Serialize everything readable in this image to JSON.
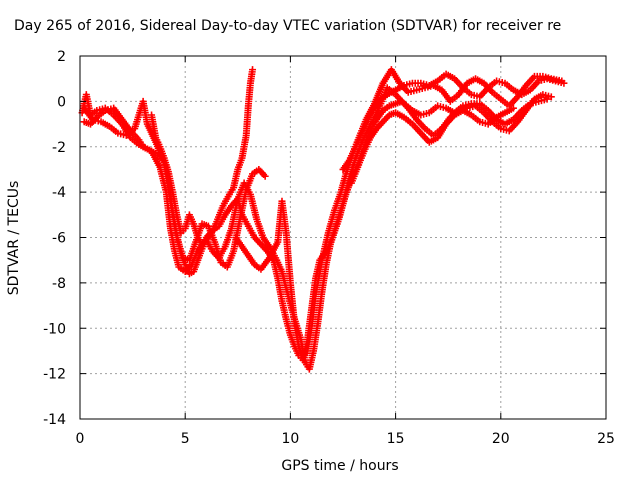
{
  "chart_data": {
    "type": "scatter",
    "title": "Day 265 of 2016, Sidereal Day-to-day VTEC variation (SDTVAR) for receiver re",
    "xlabel": "GPS time / hours",
    "ylabel": "SDTVAR / TECUs",
    "xlim": [
      0,
      25
    ],
    "ylim": [
      -14,
      2
    ],
    "xticks": [
      0,
      5,
      10,
      15,
      20,
      25
    ],
    "yticks": [
      -14,
      -12,
      -10,
      -8,
      -6,
      -4,
      -2,
      0,
      2
    ],
    "grid": true,
    "legend": "none",
    "marker": "plus",
    "color": "#ff0000",
    "series": [
      {
        "points": [
          [
            0.1,
            -0.5
          ],
          [
            0.3,
            0.3
          ],
          [
            0.5,
            -0.6
          ],
          [
            0.8,
            -0.4
          ],
          [
            1.2,
            -0.3
          ],
          [
            1.6,
            -0.6
          ],
          [
            2.0,
            -1.0
          ],
          [
            2.4,
            -1.6
          ],
          [
            2.8,
            -1.9
          ],
          [
            3.2,
            -2.1
          ],
          [
            3.6,
            -2.3
          ],
          [
            4.0,
            -2.6
          ],
          [
            4.2,
            -3.4
          ],
          [
            4.4,
            -4.8
          ],
          [
            4.6,
            -5.9
          ],
          [
            4.8,
            -6.7
          ],
          [
            5.0,
            -7.2
          ],
          [
            5.2,
            -7.6
          ],
          [
            5.4,
            -7.5
          ],
          [
            5.6,
            -7.0
          ],
          [
            5.8,
            -6.5
          ],
          [
            6.0,
            -6.0
          ],
          [
            6.3,
            -5.7
          ],
          [
            6.6,
            -5.5
          ],
          [
            6.9,
            -5.0
          ],
          [
            7.2,
            -4.6
          ],
          [
            7.5,
            -4.3
          ],
          [
            7.7,
            -5.0
          ],
          [
            8.0,
            -5.5
          ],
          [
            8.3,
            -6.0
          ],
          [
            8.6,
            -6.3
          ],
          [
            8.9,
            -6.6
          ],
          [
            9.2,
            -7.0
          ],
          [
            9.4,
            -7.8
          ],
          [
            9.6,
            -8.8
          ],
          [
            9.8,
            -9.6
          ],
          [
            10.0,
            -10.3
          ],
          [
            10.2,
            -10.8
          ],
          [
            10.4,
            -11.2
          ],
          [
            10.6,
            -11.4
          ],
          [
            10.8,
            -11.0
          ],
          [
            11.0,
            -10.0
          ],
          [
            11.2,
            -8.5
          ],
          [
            11.5,
            -7.0
          ],
          [
            11.8,
            -5.8
          ],
          [
            12.1,
            -4.8
          ],
          [
            12.4,
            -4.0
          ],
          [
            12.7,
            -3.0
          ],
          [
            13.0,
            -2.2
          ],
          [
            13.3,
            -1.5
          ],
          [
            13.6,
            -0.8
          ],
          [
            14.0,
            -0.1
          ],
          [
            14.4,
            0.8
          ],
          [
            14.8,
            1.4
          ],
          [
            15.2,
            0.8
          ],
          [
            15.6,
            0.4
          ],
          [
            16.0,
            0.5
          ],
          [
            16.4,
            0.6
          ],
          [
            16.8,
            0.7
          ],
          [
            17.2,
            0.5
          ],
          [
            17.6,
            0.0
          ],
          [
            18.0,
            0.3
          ],
          [
            18.4,
            0.8
          ],
          [
            18.8,
            1.0
          ],
          [
            19.2,
            0.8
          ],
          [
            19.6,
            0.4
          ],
          [
            20.0,
            0.1
          ],
          [
            20.4,
            -0.2
          ],
          [
            20.8,
            0.2
          ],
          [
            21.2,
            0.7
          ],
          [
            21.6,
            1.1
          ],
          [
            22.0,
            1.1
          ],
          [
            22.4,
            1.0
          ],
          [
            22.9,
            0.9
          ]
        ]
      },
      {
        "points": [
          [
            0.2,
            -0.9
          ],
          [
            0.5,
            -1.0
          ],
          [
            0.8,
            -0.7
          ],
          [
            1.2,
            -0.4
          ],
          [
            1.6,
            -0.3
          ],
          [
            2.0,
            -0.8
          ],
          [
            2.4,
            -1.3
          ],
          [
            2.8,
            -1.7
          ],
          [
            3.0,
            -2.0
          ],
          [
            3.4,
            -2.2
          ],
          [
            3.8,
            -2.9
          ],
          [
            4.1,
            -4.0
          ],
          [
            4.3,
            -5.6
          ],
          [
            4.5,
            -6.6
          ],
          [
            4.7,
            -7.3
          ],
          [
            5.0,
            -7.5
          ],
          [
            5.3,
            -7.2
          ],
          [
            5.6,
            -6.6
          ],
          [
            5.9,
            -6.2
          ],
          [
            6.2,
            -5.9
          ],
          [
            6.5,
            -5.3
          ],
          [
            6.8,
            -4.6
          ],
          [
            7.1,
            -4.1
          ],
          [
            7.3,
            -3.8
          ],
          [
            7.5,
            -3.0
          ],
          [
            7.7,
            -2.5
          ],
          [
            7.9,
            -1.5
          ],
          [
            8.0,
            -0.2
          ],
          [
            8.1,
            0.8
          ],
          [
            8.2,
            1.4
          ]
        ]
      },
      {
        "points": [
          [
            3.4,
            -0.6
          ],
          [
            3.6,
            -1.6
          ],
          [
            3.8,
            -2.0
          ],
          [
            4.0,
            -2.5
          ],
          [
            4.2,
            -3.1
          ],
          [
            4.4,
            -4.0
          ],
          [
            4.6,
            -5.0
          ],
          [
            4.8,
            -5.8
          ],
          [
            5.0,
            -5.6
          ],
          [
            5.2,
            -5.0
          ],
          [
            5.4,
            -5.4
          ],
          [
            5.6,
            -6.0
          ],
          [
            5.8,
            -6.3
          ],
          [
            6.0,
            -6.1
          ],
          [
            6.3,
            -6.6
          ],
          [
            6.6,
            -6.9
          ],
          [
            6.9,
            -6.4
          ],
          [
            7.2,
            -5.6
          ],
          [
            7.5,
            -4.3
          ],
          [
            7.8,
            -3.6
          ],
          [
            8.1,
            -4.1
          ],
          [
            8.4,
            -5.2
          ],
          [
            8.7,
            -6.0
          ],
          [
            9.0,
            -6.4
          ],
          [
            9.3,
            -6.9
          ],
          [
            9.6,
            -7.5
          ],
          [
            9.9,
            -8.6
          ],
          [
            10.2,
            -9.6
          ],
          [
            10.5,
            -10.5
          ],
          [
            10.7,
            -11.5
          ],
          [
            10.9,
            -11.8
          ],
          [
            11.1,
            -11.0
          ],
          [
            11.3,
            -9.8
          ],
          [
            11.5,
            -8.4
          ],
          [
            11.7,
            -7.2
          ],
          [
            11.9,
            -6.3
          ],
          [
            12.2,
            -5.4
          ],
          [
            12.5,
            -4.5
          ],
          [
            12.8,
            -3.4
          ],
          [
            13.1,
            -2.5
          ],
          [
            13.4,
            -1.8
          ],
          [
            13.7,
            -1.2
          ],
          [
            14.0,
            -0.7
          ],
          [
            14.3,
            -0.1
          ],
          [
            14.6,
            0.6
          ],
          [
            15.0,
            0.3
          ],
          [
            15.4,
            -0.1
          ],
          [
            15.8,
            -0.4
          ],
          [
            16.2,
            -0.6
          ],
          [
            16.6,
            -0.5
          ],
          [
            17.0,
            -0.2
          ],
          [
            17.4,
            -0.3
          ],
          [
            17.8,
            -0.5
          ],
          [
            18.2,
            -0.2
          ],
          [
            18.6,
            -0.1
          ],
          [
            19.0,
            -0.1
          ],
          [
            19.4,
            -0.4
          ],
          [
            19.8,
            -0.8
          ],
          [
            20.2,
            -1.0
          ],
          [
            20.6,
            -0.8
          ],
          [
            21.0,
            -0.4
          ],
          [
            21.4,
            -0.1
          ],
          [
            21.8,
            0.0
          ],
          [
            22.2,
            0.1
          ]
        ]
      },
      {
        "points": [
          [
            0.2,
            -0.3
          ],
          [
            0.6,
            -0.8
          ],
          [
            1.0,
            -0.9
          ],
          [
            1.4,
            -1.1
          ],
          [
            1.8,
            -1.4
          ],
          [
            2.2,
            -1.5
          ],
          [
            2.6,
            -1.2
          ],
          [
            2.8,
            -0.6
          ],
          [
            3.0,
            0.0
          ],
          [
            3.2,
            -1.0
          ],
          [
            3.6,
            -1.8
          ],
          [
            4.0,
            -2.7
          ],
          [
            4.3,
            -4.4
          ],
          [
            4.6,
            -6.0
          ],
          [
            4.9,
            -6.9
          ],
          [
            5.2,
            -7.0
          ],
          [
            5.5,
            -6.2
          ],
          [
            5.8,
            -5.4
          ],
          [
            6.1,
            -5.5
          ],
          [
            6.4,
            -6.2
          ],
          [
            6.7,
            -7.1
          ],
          [
            7.0,
            -7.3
          ],
          [
            7.3,
            -6.6
          ],
          [
            7.6,
            -5.2
          ],
          [
            7.9,
            -3.9
          ],
          [
            8.2,
            -3.2
          ],
          [
            8.5,
            -3.0
          ],
          [
            8.8,
            -3.3
          ]
        ]
      },
      {
        "points": [
          [
            7.4,
            -6.0
          ],
          [
            7.7,
            -6.4
          ],
          [
            8.0,
            -6.8
          ],
          [
            8.3,
            -7.2
          ],
          [
            8.6,
            -7.4
          ],
          [
            9.0,
            -6.9
          ],
          [
            9.4,
            -6.2
          ],
          [
            9.6,
            -4.4
          ],
          [
            9.8,
            -5.8
          ],
          [
            10.0,
            -8.0
          ],
          [
            10.2,
            -9.8
          ],
          [
            10.4,
            -10.8
          ],
          [
            10.6,
            -11.3
          ],
          [
            10.8,
            -10.6
          ],
          [
            11.0,
            -9.2
          ],
          [
            11.2,
            -7.8
          ],
          [
            11.4,
            -7.0
          ],
          [
            11.7,
            -6.6
          ],
          [
            12.0,
            -6.0
          ],
          [
            12.3,
            -5.2
          ],
          [
            12.6,
            -4.2
          ],
          [
            12.9,
            -3.4
          ],
          [
            13.2,
            -2.8
          ],
          [
            13.5,
            -2.0
          ],
          [
            13.8,
            -1.3
          ],
          [
            14.1,
            -0.8
          ],
          [
            14.4,
            -0.4
          ],
          [
            14.7,
            -0.2
          ],
          [
            15.0,
            -0.1
          ],
          [
            15.3,
            0.0
          ],
          [
            15.6,
            -0.3
          ],
          [
            16.0,
            -0.8
          ],
          [
            16.4,
            -1.2
          ],
          [
            16.8,
            -1.5
          ],
          [
            17.2,
            -1.2
          ],
          [
            17.6,
            -0.7
          ],
          [
            18.0,
            -0.4
          ],
          [
            18.4,
            -0.3
          ],
          [
            18.8,
            -0.2
          ],
          [
            19.2,
            -0.5
          ],
          [
            19.6,
            -0.9
          ],
          [
            20.0,
            -1.2
          ],
          [
            20.4,
            -1.3
          ],
          [
            20.8,
            -0.9
          ],
          [
            21.2,
            -0.4
          ],
          [
            21.6,
            0.1
          ],
          [
            22.0,
            0.3
          ],
          [
            22.4,
            0.2
          ]
        ]
      },
      {
        "points": [
          [
            12.5,
            -3.0
          ],
          [
            12.8,
            -2.6
          ],
          [
            13.1,
            -2.0
          ],
          [
            13.4,
            -1.4
          ],
          [
            13.7,
            -0.8
          ],
          [
            14.0,
            -0.3
          ],
          [
            14.3,
            0.1
          ],
          [
            14.6,
            0.3
          ],
          [
            15.0,
            0.5
          ],
          [
            15.4,
            0.7
          ],
          [
            15.8,
            0.8
          ],
          [
            16.2,
            0.8
          ],
          [
            16.6,
            0.7
          ],
          [
            17.0,
            0.9
          ],
          [
            17.4,
            1.2
          ],
          [
            17.8,
            1.0
          ],
          [
            18.2,
            0.6
          ],
          [
            18.6,
            0.3
          ],
          [
            19.0,
            0.2
          ],
          [
            19.4,
            0.6
          ],
          [
            19.8,
            0.9
          ],
          [
            20.2,
            0.8
          ],
          [
            20.6,
            0.5
          ],
          [
            21.0,
            0.3
          ],
          [
            21.4,
            0.5
          ],
          [
            21.8,
            0.9
          ],
          [
            22.2,
            1.0
          ],
          [
            22.6,
            0.9
          ],
          [
            23.0,
            0.8
          ]
        ]
      },
      {
        "points": [
          [
            12.9,
            -3.6
          ],
          [
            13.2,
            -2.9
          ],
          [
            13.5,
            -2.2
          ],
          [
            13.8,
            -1.6
          ],
          [
            14.1,
            -1.2
          ],
          [
            14.4,
            -0.9
          ],
          [
            14.7,
            -0.6
          ],
          [
            15.0,
            -0.5
          ],
          [
            15.4,
            -0.7
          ],
          [
            15.8,
            -1.0
          ],
          [
            16.2,
            -1.4
          ],
          [
            16.6,
            -1.8
          ],
          [
            17.0,
            -1.6
          ],
          [
            17.4,
            -1.0
          ],
          [
            17.8,
            -0.6
          ],
          [
            18.2,
            -0.4
          ],
          [
            18.6,
            -0.6
          ],
          [
            19.0,
            -0.9
          ],
          [
            19.4,
            -1.0
          ],
          [
            19.8,
            -0.7
          ],
          [
            20.2,
            -0.5
          ],
          [
            20.6,
            -0.3
          ]
        ]
      }
    ]
  }
}
